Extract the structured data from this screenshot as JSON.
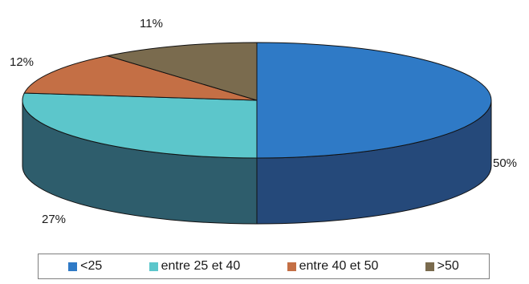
{
  "chart_data": {
    "type": "pie",
    "style": "3d",
    "title": "",
    "slices": [
      {
        "label": "<25",
        "value": 50,
        "display": "50%",
        "color": "#2f7ac6",
        "side_color": "#25497a"
      },
      {
        "label": "entre 25 et 40",
        "value": 27,
        "display": "27%",
        "color": "#5cc6cb",
        "side_color": "#2e5d6c"
      },
      {
        "label": "entre 40 et 50",
        "value": 12,
        "display": "12%",
        "color": "#c46f45",
        "side_color": "#7a4428"
      },
      {
        "label": ">50",
        "value": 11,
        "display": "11%",
        "color": "#7a6b4e",
        "side_color": "#4b4130"
      }
    ],
    "legend_position": "bottom"
  }
}
